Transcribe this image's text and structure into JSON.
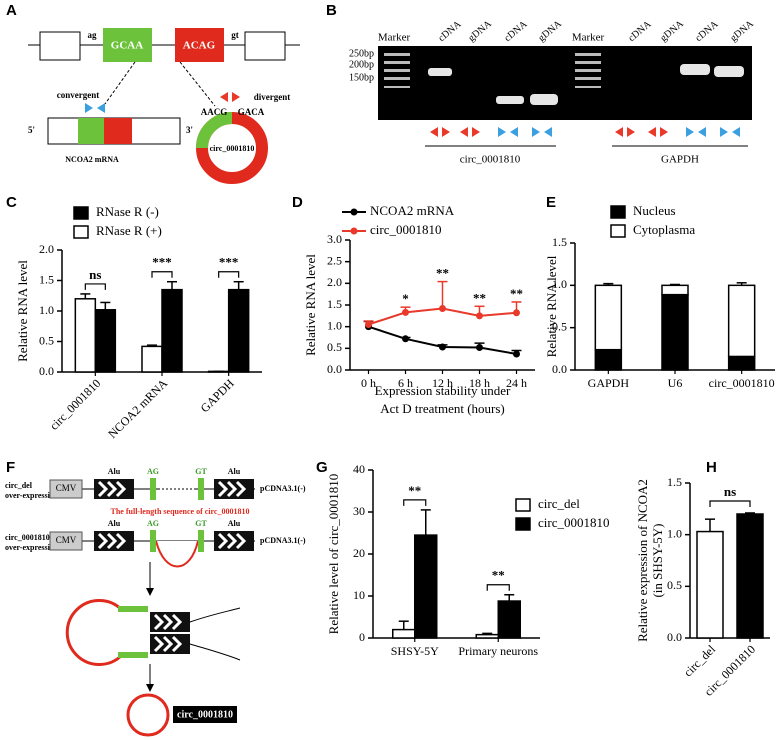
{
  "diagram_a": {
    "panel": "A",
    "splice_left": "ag",
    "exon_left": "GCAA",
    "exon_right": "ACAG",
    "splice_right": "gt",
    "convergent": "convergent",
    "divergent": "divergent",
    "five": "5'",
    "three": "3'",
    "mrna": "NCOA2 mRNA",
    "junction_left": "AACG",
    "junction_right": "GACA",
    "circle": "circ_0001810"
  },
  "gel_b": {
    "panel": "B",
    "lanes": [
      "Marker",
      "cDNA",
      "gDNA",
      "cDNA",
      "gDNA",
      "Marker",
      "cDNA",
      "gDNA",
      "cDNA",
      "gDNA"
    ],
    "sizes": [
      "250bp",
      "200bp",
      "150bp"
    ],
    "groups": [
      "circ_0001810",
      "GAPDH"
    ]
  },
  "diagram_f": {
    "panel": "F",
    "rows": [
      {
        "name": "circ_del",
        "sub": "over-expression"
      },
      {
        "name": "circ_0001810",
        "sub": "over-expression"
      }
    ],
    "cmv": "CMV",
    "alu": "Alu",
    "ag": "AG",
    "gt": "GT",
    "vector": "pCDNA3.1(-)",
    "note": "The full-length sequence of circ_0001810",
    "product": "circ_0001810"
  },
  "chart_data": [
    {
      "type": "bar",
      "panel": "C",
      "ylabel": "Relative  RNA  level",
      "categories": [
        "circ_0001810",
        "NCOA2 mRNA",
        "GAPDH"
      ],
      "series": [
        {
          "name": "RNase R (+)",
          "color": "#ffffff",
          "values": [
            1.2,
            0.42,
            0.01
          ],
          "errors": [
            0.08,
            0.02,
            0
          ]
        },
        {
          "name": "RNase R (-)",
          "color": "#000000",
          "values": [
            1.02,
            1.35,
            1.35
          ],
          "errors": [
            0.12,
            0.13,
            0.13
          ]
        }
      ],
      "annotations": [
        "ns",
        "***",
        "***"
      ],
      "ylim": [
        0,
        2.0
      ],
      "yticks": [
        {
          "value": 0,
          "label": "0.0"
        },
        0.5,
        {
          "value": 1,
          "label": "1.0"
        },
        1.5,
        {
          "value": 2,
          "label": "2.0"
        }
      ]
    },
    {
      "type": "line",
      "panel": "D",
      "ylabel": "Relative RNA level",
      "xlabel": [
        "Expression stability under",
        "Act D treatment (hours)"
      ],
      "categories": [
        "0 h",
        "6 h",
        "12 h",
        "18 h",
        "24 h"
      ],
      "series": [
        {
          "name": "NCOA2 mRNA",
          "color": "#000000",
          "values": [
            1.0,
            0.72,
            0.53,
            0.52,
            0.37
          ],
          "errors": [
            0.12,
            0.03,
            0.05,
            0.1,
            0.08
          ]
        },
        {
          "name": "circ_0001810",
          "color": "#e8392b",
          "values": [
            1.05,
            1.33,
            1.42,
            1.25,
            1.32
          ],
          "errors": [
            0.08,
            0.12,
            0.62,
            0.22,
            0.25
          ]
        }
      ],
      "annotations": [
        null,
        "*",
        "**",
        "**",
        "**"
      ],
      "ylim": [
        0,
        3.0
      ],
      "yticks": [
        {
          "value": 0,
          "label": "0.0"
        },
        0.5,
        {
          "value": 1,
          "label": "1.0"
        },
        1.5,
        {
          "value": 2,
          "label": "2.0"
        },
        2.5,
        {
          "value": 3,
          "label": "3.0"
        }
      ]
    },
    {
      "type": "stacked_bar",
      "panel": "E",
      "ylabel": "Relative  RNA level",
      "categories": [
        "GAPDH",
        "U6",
        "circ_0001810"
      ],
      "series": [
        {
          "name": "Nucleus",
          "color": "#000000",
          "values": [
            0.24,
            0.89,
            0.16
          ],
          "errors": [
            0.02,
            0.01,
            0.03
          ]
        },
        {
          "name": "Cytoplasma",
          "color": "#ffffff",
          "values": [
            0.76,
            0.11,
            0.84
          ],
          "errors": [
            0.02,
            0.01,
            0.03
          ]
        }
      ],
      "ylim": [
        0,
        1.5
      ],
      "yticks": [
        {
          "value": 0,
          "label": "0.0"
        },
        0.5,
        {
          "value": 1,
          "label": "1.0"
        },
        1.5
      ]
    },
    {
      "type": "bar",
      "panel": "G",
      "ylabel": "Relative level of circ_0001810",
      "categories": [
        "SHSY-5Y",
        "Primary neurons"
      ],
      "series": [
        {
          "name": "circ_del",
          "color": "#ffffff",
          "values": [
            2.0,
            0.8
          ],
          "errors": [
            2.0,
            0.3
          ]
        },
        {
          "name": "circ_0001810",
          "color": "#000000",
          "values": [
            24.5,
            8.8
          ],
          "errors": [
            6.0,
            1.5
          ]
        }
      ],
      "annotations": [
        "**",
        "**"
      ],
      "ylim": [
        0,
        40
      ],
      "yticks": [
        0,
        10,
        20,
        30,
        40
      ]
    },
    {
      "type": "bar",
      "panel": "H",
      "ylabel": [
        "Relative expression of  NCOA2",
        "(in  SHSY-5Y)"
      ],
      "categories": [
        "circ_del",
        "circ_0001810"
      ],
      "values": [
        1.03,
        1.2
      ],
      "errors": [
        0.12,
        0.01
      ],
      "colors": [
        "#ffffff",
        "#000000"
      ],
      "annotation": "ns",
      "ylim": [
        0,
        1.5
      ],
      "yticks": [
        {
          "value": 0,
          "label": "0.0"
        },
        0.5,
        {
          "value": 1,
          "label": "1.0"
        },
        1.5
      ]
    }
  ]
}
